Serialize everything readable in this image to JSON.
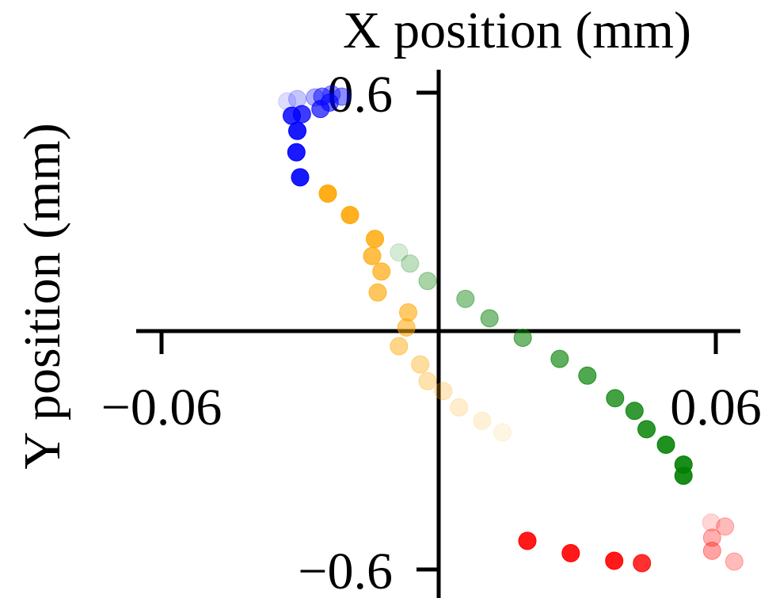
{
  "chart_data": {
    "type": "scatter",
    "title": "",
    "xlabel": "X position (mm)",
    "ylabel": "Y position (mm)",
    "xlim": [
      -0.068,
      0.065
    ],
    "ylim": [
      -0.62,
      0.63
    ],
    "x_ticks": [
      {
        "value": -0.06,
        "label": "−0.06"
      },
      {
        "value": 0.06,
        "label": "0.06"
      }
    ],
    "y_ticks": [
      {
        "value": 0.6,
        "label": "0.6"
      },
      {
        "value": -0.6,
        "label": "−0.6"
      }
    ],
    "grid": false,
    "legend": "none",
    "series": [
      {
        "color": "#0000ff",
        "points": [
          [
            -0.03,
            0.387
          ],
          [
            -0.0308,
            0.45
          ],
          [
            -0.0306,
            0.504
          ],
          [
            -0.0318,
            0.542
          ],
          [
            -0.0296,
            0.546
          ],
          [
            -0.0256,
            0.559
          ],
          [
            -0.0236,
            0.575
          ],
          [
            -0.0252,
            0.59
          ],
          [
            -0.021,
            0.59
          ],
          [
            -0.0232,
            0.596
          ],
          [
            -0.0268,
            0.588
          ],
          [
            -0.0306,
            0.584
          ],
          [
            -0.0328,
            0.578
          ]
        ],
        "alphas": [
          1.0,
          1.0,
          1.0,
          0.92,
          0.85,
          0.75,
          0.65,
          0.55,
          0.5,
          0.45,
          0.35,
          0.25,
          0.15
        ]
      },
      {
        "color": "#ffa500",
        "points": [
          [
            -0.024,
            0.346
          ],
          [
            -0.0192,
            0.292
          ],
          [
            -0.0138,
            0.232
          ],
          [
            -0.0144,
            0.189
          ],
          [
            -0.0124,
            0.15
          ],
          [
            -0.0132,
            0.097
          ],
          [
            -0.0066,
            0.047
          ],
          [
            -0.007,
            0.009
          ],
          [
            -0.0086,
            -0.038
          ],
          [
            -0.004,
            -0.084
          ],
          [
            -0.0024,
            -0.126
          ],
          [
            0.001,
            -0.151
          ],
          [
            0.0044,
            -0.192
          ],
          [
            0.0094,
            -0.226
          ],
          [
            0.0138,
            -0.255
          ]
        ],
        "alphas": [
          1.0,
          0.97,
          0.9,
          0.8,
          0.75,
          0.7,
          0.65,
          0.6,
          0.52,
          0.42,
          0.35,
          0.28,
          0.22,
          0.17,
          0.12
        ]
      },
      {
        "color": "#008000",
        "points": [
          [
            0.053,
            -0.364
          ],
          [
            0.053,
            -0.336
          ],
          [
            0.0492,
            -0.286
          ],
          [
            0.045,
            -0.247
          ],
          [
            0.0424,
            -0.201
          ],
          [
            0.0382,
            -0.169
          ],
          [
            0.0322,
            -0.112
          ],
          [
            0.0262,
            -0.07
          ],
          [
            0.0182,
            -0.017
          ],
          [
            0.011,
            0.032
          ],
          [
            0.0058,
            0.081
          ],
          [
            -0.0024,
            0.126
          ],
          [
            -0.0062,
            0.17
          ],
          [
            -0.0086,
            0.198
          ]
        ],
        "alphas": [
          1.0,
          1.0,
          0.97,
          0.92,
          0.88,
          0.82,
          0.76,
          0.7,
          0.62,
          0.55,
          0.48,
          0.38,
          0.28,
          0.18
        ]
      },
      {
        "color": "#ff0000",
        "points": [
          [
            0.0192,
            -0.528
          ],
          [
            0.0286,
            -0.559
          ],
          [
            0.038,
            -0.578
          ],
          [
            0.044,
            -0.584
          ],
          [
            0.0592,
            -0.52
          ],
          [
            0.062,
            -0.492
          ],
          [
            0.0592,
            -0.553
          ],
          [
            0.064,
            -0.58
          ],
          [
            0.059,
            -0.482
          ]
        ],
        "alphas": [
          1.0,
          1.0,
          1.0,
          0.9,
          0.35,
          0.3,
          0.4,
          0.3,
          0.18
        ]
      }
    ]
  }
}
